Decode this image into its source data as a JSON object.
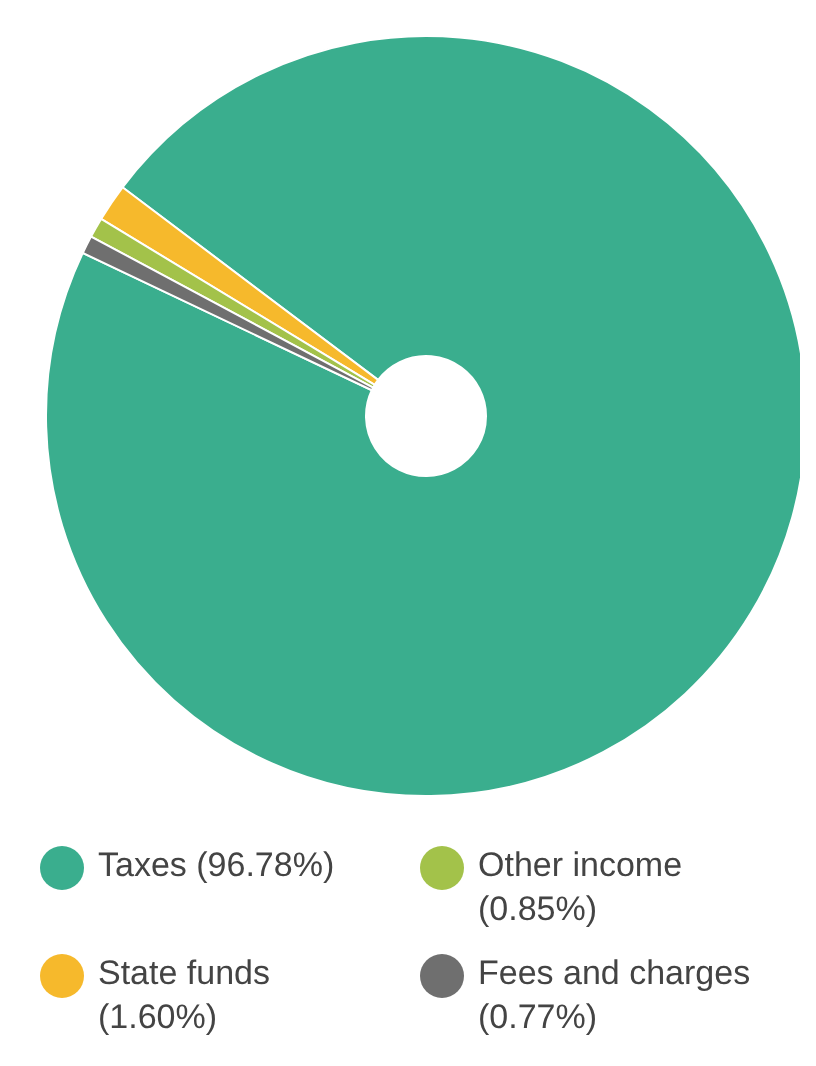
{
  "chart_data": {
    "type": "donut",
    "categories": [
      "Taxes (96.78%)",
      "State funds (1.60%)",
      "Other income (0.85%)",
      "Fees and charges (0.77%)"
    ],
    "values": [
      96.78,
      1.6,
      0.85,
      0.77
    ],
    "colors": [
      "#3aae8e",
      "#f6b92c",
      "#a3c24a",
      "#6f6f6f"
    ],
    "legend": "bottom"
  }
}
